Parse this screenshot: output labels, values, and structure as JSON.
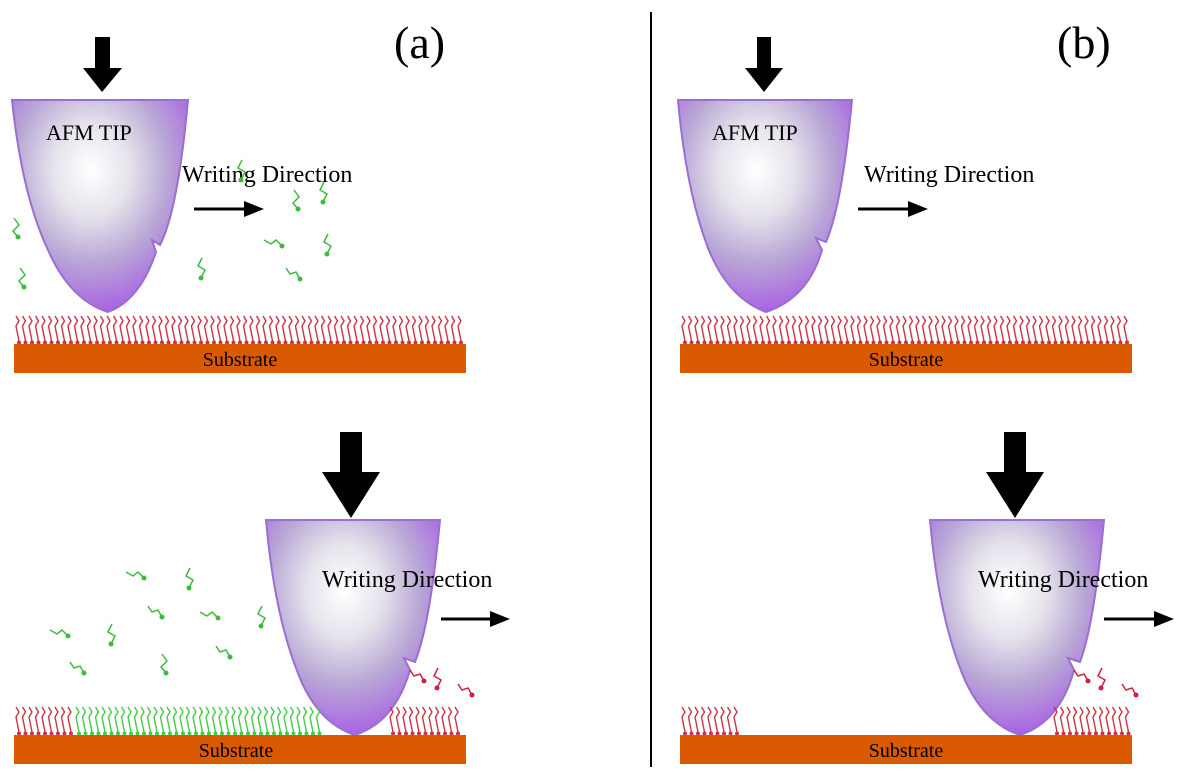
{
  "panels": {
    "a": {
      "label": "(a)"
    },
    "b": {
      "label": "(b)"
    }
  },
  "labels": {
    "tip": "AFM TIP",
    "direction": "Writing Direction",
    "substrate": "Substrate"
  },
  "colors": {
    "substrate": "#d95a00",
    "sam_existing": "#cc3344",
    "sam_new": "#44cc44",
    "ink_molecule": "#3dbb3d",
    "displaced_molecule": "#cc2244",
    "tip_edge": "#9a6fd0",
    "tip_core": "#ffffff",
    "arrow": "#000000",
    "divider": "#000000"
  }
}
